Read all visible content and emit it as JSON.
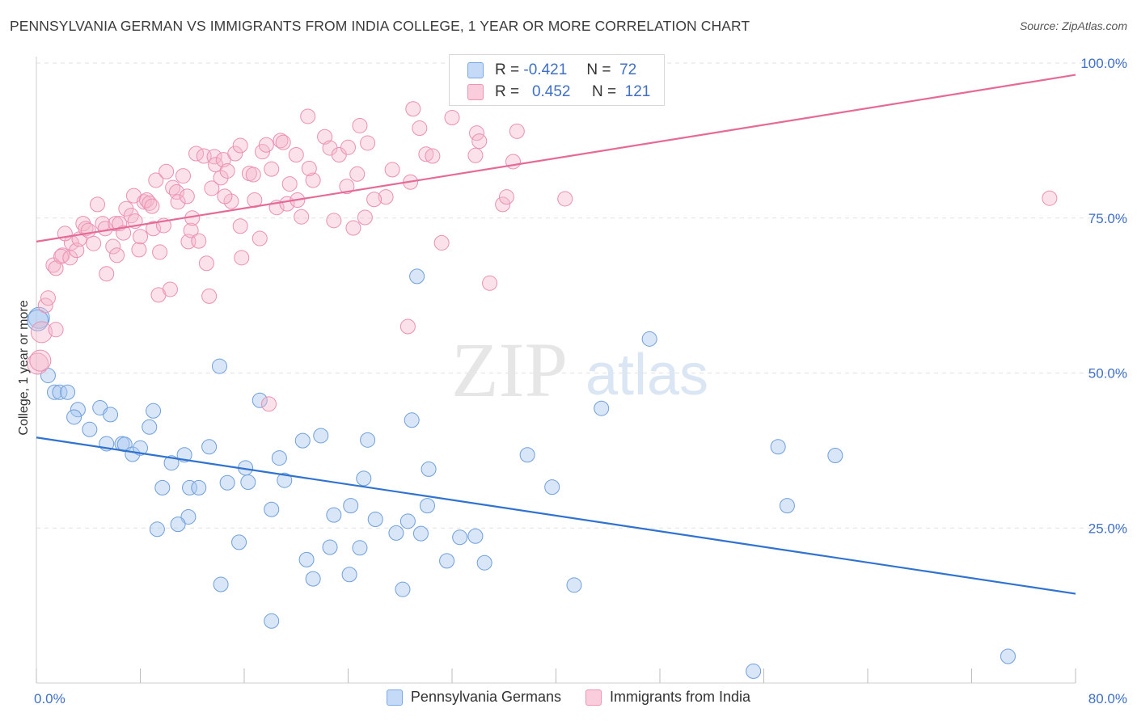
{
  "title": "PENNSYLVANIA GERMAN VS IMMIGRANTS FROM INDIA COLLEGE, 1 YEAR OR MORE CORRELATION CHART",
  "source": "Source: ZipAtlas.com",
  "watermark": {
    "zip": "ZIP",
    "atlas": "atlas"
  },
  "legend": {
    "rows": [
      {
        "r_label": "R =",
        "r_value": "-0.421",
        "n_label": "N =",
        "n_value": "72"
      },
      {
        "r_label": "R =",
        "r_value": "0.452",
        "n_label": "N =",
        "n_value": "121"
      }
    ]
  },
  "bottom_legend": [
    "Pennsylvania Germans",
    "Immigrants from India"
  ],
  "colors": {
    "blue_fill": "#a8c8f0",
    "blue_line": "#2f72d0",
    "pink_fill": "#f5b6cb",
    "pink_line": "#e56a95",
    "tick": "#3f6fc6"
  },
  "chart_data": {
    "type": "scatter",
    "title": "PENNSYLVANIA GERMAN VS IMMIGRANTS FROM INDIA COLLEGE, 1 YEAR OR MORE CORRELATION CHART",
    "xlabel": "",
    "ylabel": "College, 1 year or more",
    "xlim": [
      0,
      80
    ],
    "ylim": [
      0,
      100
    ],
    "x_ticks": [
      "0.0%",
      "80.0%"
    ],
    "y_ticks": [
      {
        "value": 25,
        "label": "25.0%"
      },
      {
        "value": 50,
        "label": "50.0%"
      },
      {
        "value": 75,
        "label": "75.0%"
      },
      {
        "value": 100,
        "label": "100.0%"
      }
    ],
    "grid": true,
    "legend_position": "top-center",
    "series": [
      {
        "name": "Pennsylvania Germans",
        "color": "#a8c8f0",
        "r": -0.421,
        "n": 72,
        "trend": {
          "x": [
            0,
            80
          ],
          "y": [
            39.6,
            14.4
          ]
        },
        "points": [
          [
            0.2,
            58.9
          ],
          [
            0.9,
            49.6
          ],
          [
            1.4,
            46.9
          ],
          [
            1.8,
            46.9
          ],
          [
            2.4,
            46.9
          ],
          [
            3.2,
            44.1
          ],
          [
            2.9,
            42.9
          ],
          [
            4.9,
            44.4
          ],
          [
            5.7,
            43.3
          ],
          [
            4.1,
            40.9
          ],
          [
            5.4,
            38.6
          ],
          [
            6.6,
            38.6
          ],
          [
            8.7,
            41.3
          ],
          [
            9.0,
            43.9
          ],
          [
            6.8,
            38.5
          ],
          [
            7.4,
            36.9
          ],
          [
            8.0,
            37.9
          ],
          [
            10.4,
            35.5
          ],
          [
            11.4,
            36.8
          ],
          [
            13.3,
            38.1
          ],
          [
            14.1,
            51.1
          ],
          [
            17.2,
            45.6
          ],
          [
            9.7,
            31.5
          ],
          [
            11.8,
            31.5
          ],
          [
            12.5,
            31.5
          ],
          [
            14.7,
            32.3
          ],
          [
            16.3,
            32.4
          ],
          [
            16.1,
            34.7
          ],
          [
            18.7,
            36.3
          ],
          [
            19.1,
            32.7
          ],
          [
            20.5,
            39.1
          ],
          [
            21.9,
            39.9
          ],
          [
            25.5,
            39.2
          ],
          [
            28.9,
            42.4
          ],
          [
            30.2,
            34.5
          ],
          [
            25.2,
            33.0
          ],
          [
            22.9,
            27.1
          ],
          [
            24.2,
            28.6
          ],
          [
            26.1,
            26.4
          ],
          [
            18.1,
            28.0
          ],
          [
            11.7,
            26.8
          ],
          [
            10.9,
            25.6
          ],
          [
            9.3,
            24.8
          ],
          [
            15.6,
            22.7
          ],
          [
            20.8,
            19.9
          ],
          [
            22.6,
            21.9
          ],
          [
            24.9,
            21.8
          ],
          [
            21.3,
            16.8
          ],
          [
            24.1,
            17.5
          ],
          [
            14.2,
            15.9
          ],
          [
            18.1,
            10.0
          ],
          [
            27.7,
            24.2
          ],
          [
            28.6,
            26.1
          ],
          [
            30.1,
            28.6
          ],
          [
            29.6,
            24.1
          ],
          [
            31.6,
            19.7
          ],
          [
            32.6,
            23.5
          ],
          [
            33.8,
            23.7
          ],
          [
            34.5,
            19.4
          ],
          [
            28.2,
            15.1
          ],
          [
            29.3,
            65.6
          ],
          [
            47.2,
            55.5
          ],
          [
            43.5,
            44.3
          ],
          [
            37.8,
            36.8
          ],
          [
            39.7,
            31.6
          ],
          [
            41.4,
            15.8
          ],
          [
            57.1,
            38.1
          ],
          [
            61.5,
            36.7
          ],
          [
            57.8,
            28.6
          ],
          [
            74.8,
            4.3
          ],
          [
            55.2,
            1.9
          ],
          [
            0.1,
            58.5
          ]
        ]
      },
      {
        "name": "Immigrants from India",
        "color": "#f5b6cb",
        "r": 0.452,
        "n": 121,
        "trend": {
          "x": [
            0,
            80
          ],
          "y": [
            71.2,
            98.1
          ]
        },
        "points": [
          [
            0.1,
            51.5
          ],
          [
            0.4,
            56.6
          ],
          [
            0.7,
            60.9
          ],
          [
            0.9,
            62.1
          ],
          [
            1.3,
            67.4
          ],
          [
            1.5,
            66.9
          ],
          [
            2.0,
            69.0
          ],
          [
            1.9,
            68.8
          ],
          [
            2.6,
            68.6
          ],
          [
            2.7,
            71.0
          ],
          [
            3.1,
            69.8
          ],
          [
            3.3,
            71.6
          ],
          [
            3.6,
            74.1
          ],
          [
            3.8,
            73.3
          ],
          [
            4.4,
            70.9
          ],
          [
            4.7,
            77.2
          ],
          [
            5.1,
            74.1
          ],
          [
            5.3,
            73.3
          ],
          [
            5.4,
            66.0
          ],
          [
            6.1,
            74.1
          ],
          [
            5.9,
            70.4
          ],
          [
            6.4,
            74.1
          ],
          [
            6.7,
            72.6
          ],
          [
            6.9,
            76.5
          ],
          [
            7.3,
            75.4
          ],
          [
            7.6,
            74.5
          ],
          [
            7.5,
            78.6
          ],
          [
            7.9,
            69.9
          ],
          [
            8.3,
            77.6
          ],
          [
            8.5,
            77.9
          ],
          [
            8.7,
            77.4
          ],
          [
            8.9,
            76.9
          ],
          [
            9.0,
            73.3
          ],
          [
            9.2,
            81.1
          ],
          [
            9.4,
            62.6
          ],
          [
            9.5,
            69.5
          ],
          [
            9.8,
            73.8
          ],
          [
            10.0,
            82.5
          ],
          [
            10.3,
            63.5
          ],
          [
            10.5,
            79.9
          ],
          [
            10.8,
            79.2
          ],
          [
            10.9,
            77.6
          ],
          [
            11.3,
            81.8
          ],
          [
            11.6,
            78.5
          ],
          [
            11.7,
            71.2
          ],
          [
            11.9,
            73.0
          ],
          [
            12.3,
            85.4
          ],
          [
            12.5,
            71.3
          ],
          [
            12.9,
            85.0
          ],
          [
            13.1,
            67.7
          ],
          [
            13.3,
            62.4
          ],
          [
            13.5,
            79.8
          ],
          [
            13.7,
            84.9
          ],
          [
            13.8,
            83.6
          ],
          [
            14.2,
            81.5
          ],
          [
            14.4,
            84.4
          ],
          [
            14.7,
            82.6
          ],
          [
            15.0,
            77.7
          ],
          [
            15.3,
            85.4
          ],
          [
            15.7,
            73.7
          ],
          [
            15.7,
            86.7
          ],
          [
            15.8,
            68.6
          ],
          [
            16.4,
            82.2
          ],
          [
            16.7,
            82.0
          ],
          [
            16.8,
            77.9
          ],
          [
            17.2,
            71.7
          ],
          [
            17.4,
            85.7
          ],
          [
            17.7,
            86.8
          ],
          [
            18.1,
            82.9
          ],
          [
            18.5,
            76.7
          ],
          [
            18.8,
            87.5
          ],
          [
            19.0,
            87.2
          ],
          [
            19.3,
            77.3
          ],
          [
            20.0,
            85.2
          ],
          [
            20.1,
            77.9
          ],
          [
            20.4,
            75.2
          ],
          [
            20.9,
            91.4
          ],
          [
            21.3,
            81.1
          ],
          [
            22.2,
            88.1
          ],
          [
            22.6,
            86.3
          ],
          [
            22.9,
            74.6
          ],
          [
            23.3,
            85.2
          ],
          [
            23.9,
            80.1
          ],
          [
            24.0,
            86.4
          ],
          [
            24.4,
            73.4
          ],
          [
            24.7,
            82.1
          ],
          [
            24.9,
            89.9
          ],
          [
            25.3,
            75.1
          ],
          [
            25.5,
            87.1
          ],
          [
            26.9,
            78.4
          ],
          [
            27.4,
            82.8
          ],
          [
            28.6,
            57.5
          ],
          [
            28.8,
            80.8
          ],
          [
            29.0,
            92.6
          ],
          [
            29.5,
            89.5
          ],
          [
            30.0,
            85.3
          ],
          [
            31.2,
            71.0
          ],
          [
            32.0,
            91.2
          ],
          [
            33.8,
            85.1
          ],
          [
            33.9,
            88.7
          ],
          [
            34.1,
            87.4
          ],
          [
            34.9,
            64.5
          ],
          [
            35.9,
            77.2
          ],
          [
            36.2,
            78.4
          ],
          [
            36.7,
            84.1
          ],
          [
            37.0,
            89.0
          ],
          [
            40.7,
            78.1
          ],
          [
            17.9,
            45.0
          ],
          [
            78.0,
            78.2
          ],
          [
            1.5,
            57.0
          ],
          [
            2.2,
            72.5
          ],
          [
            4.0,
            73.0
          ],
          [
            6.2,
            69.0
          ],
          [
            8.0,
            72.0
          ],
          [
            12.0,
            75.0
          ],
          [
            14.5,
            78.5
          ],
          [
            19.5,
            80.5
          ],
          [
            21.0,
            83.0
          ],
          [
            26.0,
            78.0
          ],
          [
            30.5,
            85.0
          ],
          [
            0.3,
            52.0
          ]
        ]
      }
    ]
  }
}
